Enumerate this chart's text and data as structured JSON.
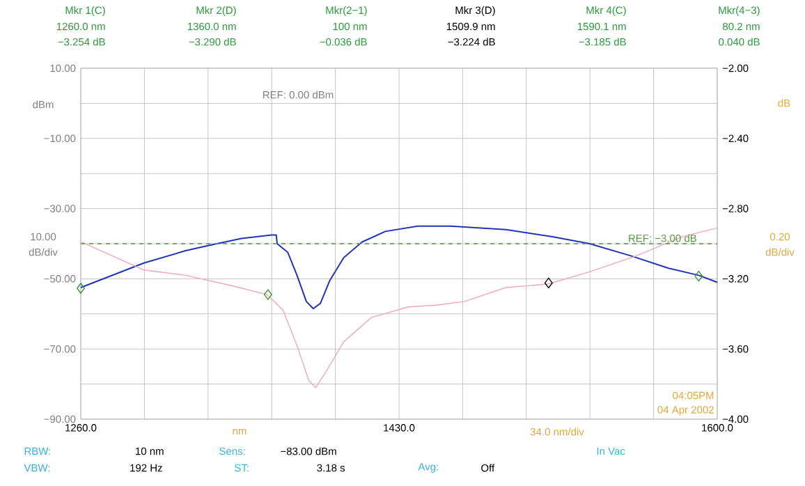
{
  "chart_data": {
    "type": "line",
    "xlabel": "nm",
    "ylabel": "dBm",
    "y2label": "dB",
    "xlim": [
      1260,
      1600
    ],
    "xticks": [
      {
        "value": 1260,
        "label": "1260.0"
      },
      {
        "value": 1294,
        "label": null
      },
      {
        "value": 1328,
        "label": null
      },
      {
        "value": 1362,
        "label": null
      },
      {
        "value": 1396,
        "label": null
      },
      {
        "value": 1430,
        "label": "1430.0"
      },
      {
        "value": 1464,
        "label": null
      },
      {
        "value": 1498,
        "label": null
      },
      {
        "value": 1532,
        "label": null
      },
      {
        "value": 1566,
        "label": null
      },
      {
        "value": 1600,
        "label": "1600.0"
      }
    ],
    "ylim": [
      -90,
      10
    ],
    "yticks": [
      {
        "value": 10,
        "label": "10.00"
      },
      {
        "value": 0,
        "label": null
      },
      {
        "value": -10,
        "label": "−10.00"
      },
      {
        "value": -20,
        "label": null
      },
      {
        "value": -30,
        "label": "−30.00"
      },
      {
        "value": -40,
        "label": null
      },
      {
        "value": -50,
        "label": "−50.00"
      },
      {
        "value": -60,
        "label": null
      },
      {
        "value": -70,
        "label": "−70.00"
      },
      {
        "value": -80,
        "label": null
      },
      {
        "value": -90,
        "label": "−90.00"
      }
    ],
    "y2lim": [
      -4,
      -2
    ],
    "y2ticks": [
      {
        "value": -2,
        "label": "−2.00"
      },
      {
        "value": -2.4,
        "label": "−2.40"
      },
      {
        "value": -2.8,
        "label": "−2.80"
      },
      {
        "value": -3.2,
        "label": "−3.20"
      },
      {
        "value": -3.6,
        "label": "−3.60"
      },
      {
        "value": -4,
        "label": "−4.00"
      }
    ],
    "grid": true,
    "series": [
      {
        "axis": "y2",
        "color": "#2233bb",
        "x": [
          1260,
          1293.7,
          1316,
          1328.4,
          1345.8,
          1361.9,
          1364.4,
          1364.9,
          1370.6,
          1375.5,
          1380.5,
          1384.2,
          1388,
          1393,
          1400.4,
          1410.3,
          1422.7,
          1440,
          1457.4,
          1487.1,
          1512,
          1531.8,
          1554.1,
          1574,
          1590.1,
          1600
        ],
        "values": [
          -3.25,
          -3.11,
          -3.04,
          -3.01,
          -2.97,
          -2.95,
          -2.95,
          -3.0,
          -3.05,
          -3.18,
          -3.33,
          -3.37,
          -3.34,
          -3.21,
          -3.08,
          -2.99,
          -2.93,
          -2.9,
          -2.9,
          -2.92,
          -2.96,
          -3.0,
          -3.07,
          -3.14,
          -3.18,
          -3.22
        ]
      },
      {
        "axis": "y2",
        "color": "#f2a8b4",
        "x": [
          1260.2,
          1293.7,
          1316,
          1340.9,
          1359.5,
          1368.1,
          1375.5,
          1381.8,
          1385.5,
          1390.4,
          1400.4,
          1415.3,
          1435.1,
          1450,
          1464.8,
          1487.1,
          1509.5,
          1531.8,
          1556.6,
          1581.4,
          1600
        ],
        "values": [
          -2.99,
          -3.15,
          -3.18,
          -3.24,
          -3.29,
          -3.38,
          -3.58,
          -3.78,
          -3.82,
          -3.74,
          -3.56,
          -3.42,
          -3.36,
          -3.35,
          -3.33,
          -3.25,
          -3.23,
          -3.16,
          -3.07,
          -2.96,
          -2.91
        ]
      },
      {
        "type": "scatter",
        "axis": "y2",
        "marker": "diamond",
        "color": "#339933",
        "colors": [
          "#339933",
          "#339933",
          "#000000",
          "#339933"
        ],
        "x": [
          1260,
          1360,
          1509.9,
          1590.1
        ],
        "values": [
          -3.254,
          -3.29,
          -3.224,
          -3.185
        ]
      }
    ],
    "ref_lines": [
      {
        "axis": "y2",
        "value": -3.0,
        "label": "REF: −3.00 dB",
        "color": "#559944",
        "line_style": "dashed"
      }
    ],
    "annotations": [
      "Mkr 1(C)",
      "Mkr 2(D)",
      "Mkr(2−1)",
      "Mkr 3(D)",
      "Mkr 4(C)",
      "Mkr(4−3)",
      "1260.0 nm",
      "1360.0 nm",
      "100 nm",
      "1509.9 nm",
      "1590.1 nm",
      "80.2 nm",
      "−3.254 dB",
      "−3.290 dB",
      "−0.036 dB",
      "−3.224 dB",
      "−3.185 dB",
      "0.040 dB",
      "REF: 0.00 dBm",
      "10.00",
      "dB/div",
      "0.20",
      "dB/div",
      "34.0 nm/div",
      "04:05PM",
      "04 Apr 2002",
      "RBW:",
      "10 nm",
      "VBW:",
      "192 Hz",
      "Sens:",
      "−83.00 dBm",
      "ST:",
      "3.18 s",
      "Avg:",
      "Off",
      "In Vac"
    ]
  }
}
